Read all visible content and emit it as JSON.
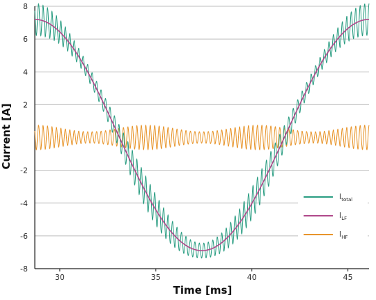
{
  "chart_data": {
    "type": "line",
    "title": "",
    "xlabel": "Time [ms]",
    "ylabel": "Current [A]",
    "xlim": [
      28.7,
      46.1
    ],
    "ylim": [
      -8,
      8
    ],
    "xticks": [
      30,
      35,
      40,
      45
    ],
    "yticks": [
      8,
      6,
      4,
      2,
      -2,
      -4,
      -6,
      -8
    ],
    "grid": "horizontal",
    "legend": {
      "placement": "bottom-right",
      "entries": [
        {
          "main": "I",
          "sub": "total",
          "color": "#2a9d82"
        },
        {
          "main": "I",
          "sub": "LF",
          "color": "#b0488a"
        },
        {
          "main": "I",
          "sub": "HF",
          "color": "#e8952b"
        }
      ]
    },
    "series": [
      {
        "id": "total",
        "color": "#2a9d82",
        "description_values": {
          "x": [
            28.7,
            37.4,
            46.1
          ],
          "y": [
            7.2,
            -6.9,
            7.2
          ],
          "ripple_amplitude": 0.75
        }
      },
      {
        "id": "LF",
        "color": "#b0488a",
        "x": [
          28.7,
          30,
          31,
          32,
          33,
          34,
          35,
          36,
          37,
          37.4,
          38,
          39,
          40,
          41,
          42,
          43,
          44,
          45,
          46.1
        ],
        "y": [
          7.2,
          6.2,
          4.6,
          2.4,
          0.0,
          -2.4,
          -4.5,
          -6.0,
          -6.8,
          -6.9,
          -6.8,
          -6.0,
          -4.5,
          -2.4,
          0.0,
          2.4,
          4.6,
          6.2,
          7.2
        ]
      },
      {
        "id": "HF",
        "color": "#e8952b",
        "description_values": {
          "x": [
            28.7,
            46.1
          ],
          "center": 0.0,
          "amplitude_range": [
            0.3,
            0.8
          ]
        }
      }
    ]
  }
}
